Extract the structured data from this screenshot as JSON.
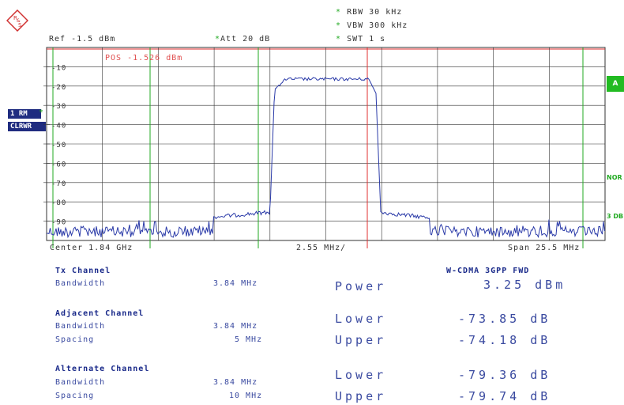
{
  "logo": {
    "text": "R&S"
  },
  "settings": {
    "rbw": "RBW 30 kHz",
    "vbw": "VBW 300 kHz",
    "swt": "SWT 1 s",
    "ref": "Ref -1.5 dBm",
    "att": "Att  20 dB",
    "star": "*"
  },
  "side": {
    "trace_badge_line1": "1 RM",
    "trace_badge_line2": "CLRWR",
    "a_badge": "A",
    "nor": "NOR",
    "three_db": "3 DB"
  },
  "plot": {
    "pos_marker": "POS -1.526 dBm",
    "center": "Center 1.84 GHz",
    "div": "2.55 MHz/",
    "span": "Span 25.5 MHz",
    "y_ticks": [
      "-10",
      "-20",
      "-30",
      "-40",
      "-50",
      "-60",
      "-70",
      "-80",
      "-90"
    ]
  },
  "results": {
    "standard": "W-CDMA 3GPP FWD",
    "tx_title": "Tx Channel",
    "tx_bw_label": "Bandwidth",
    "tx_bw_value": "3.84 MHz",
    "power_label": "Power",
    "power_value": "3.25 dBm",
    "adj_title": "Adjacent Channel",
    "adj_bw_label": "Bandwidth",
    "adj_bw_value": "3.84 MHz",
    "adj_sp_label": "Spacing",
    "adj_sp_value": "5 MHz",
    "adj_lower_label": "Lower",
    "adj_lower_value": "-73.85 dB",
    "adj_upper_label": "Upper",
    "adj_upper_value": "-74.18 dB",
    "alt_title": "Alternate Channel",
    "alt_bw_label": "Bandwidth",
    "alt_bw_value": "3.84 MHz",
    "alt_sp_label": "Spacing",
    "alt_sp_value": "10 MHz",
    "alt_lower_label": "Lower",
    "alt_lower_value": "-79.36 dB",
    "alt_upper_label": "Upper",
    "alt_upper_value": "-79.74 dB"
  },
  "colors": {
    "trace": "#2a3aa8",
    "grid": "#333333",
    "channel_lines": "#22aa22",
    "marker_line": "#e03030"
  }
}
